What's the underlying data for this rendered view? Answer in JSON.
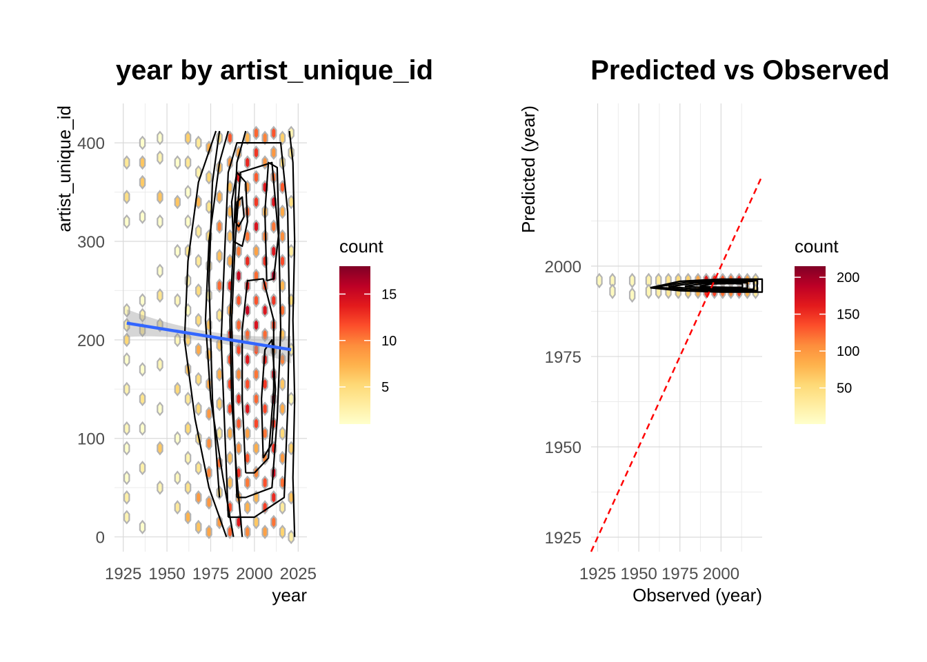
{
  "chart_data": [
    {
      "type": "hexbin",
      "title": "year by artist_unique_id",
      "xlabel": "year",
      "ylabel": "artist_unique_id",
      "xlim": [
        1920,
        2030
      ],
      "ylim": [
        -15,
        440
      ],
      "x_ticks": [
        1925,
        1950,
        1975,
        2000,
        2025
      ],
      "y_ticks": [
        0,
        100,
        200,
        300,
        400
      ],
      "x_tick_labels": [
        "1925",
        "1950",
        "1975",
        "2000",
        "2025"
      ],
      "y_tick_labels": [
        "0",
        "100",
        "200",
        "300",
        "400"
      ],
      "grid": true,
      "legend": {
        "title": "count",
        "position": "right",
        "labels": [
          "5",
          "10",
          "15"
        ],
        "breaks": [
          5,
          10,
          15
        ],
        "range": [
          1,
          18
        ]
      },
      "color_scale": [
        "#ffffcc",
        "#ffeda0",
        "#fed976",
        "#feb24c",
        "#fd8d3c",
        "#fc4e2a",
        "#e31a1c",
        "#bd0026",
        "#800026"
      ],
      "columns": [
        {
          "x": 1927,
          "intensity": 0.08,
          "ys": [
            20,
            40,
            60,
            90,
            110,
            150,
            180,
            200,
            215,
            230,
            320,
            345,
            380
          ]
        },
        {
          "x": 1936,
          "intensity": 0.1,
          "ys": [
            10,
            70,
            110,
            140,
            170,
            210,
            225,
            240,
            325,
            360,
            380,
            400
          ]
        },
        {
          "x": 1946,
          "intensity": 0.1,
          "ys": [
            50,
            90,
            130,
            175,
            215,
            245,
            270,
            320,
            345,
            385,
            405
          ]
        },
        {
          "x": 1956,
          "intensity": 0.12,
          "ys": [
            30,
            60,
            100,
            150,
            200,
            240,
            290,
            340,
            380
          ]
        },
        {
          "x": 1962,
          "intensity": 0.2,
          "ys": [
            20,
            50,
            80,
            110,
            140,
            170,
            200,
            230,
            260,
            290,
            320,
            350,
            380,
            405
          ]
        },
        {
          "x": 1968,
          "intensity": 0.25,
          "ys": [
            10,
            40,
            70,
            100,
            130,
            160,
            190,
            220,
            250,
            280,
            310,
            340,
            370,
            400
          ]
        },
        {
          "x": 1974,
          "intensity": 0.3,
          "ys": [
            5,
            35,
            65,
            95,
            125,
            155,
            185,
            215,
            245,
            275,
            305,
            335,
            365,
            395
          ]
        },
        {
          "x": 1980,
          "intensity": 0.35,
          "ys": [
            15,
            45,
            75,
            105,
            135,
            165,
            195,
            225,
            255,
            285,
            315,
            345,
            375,
            405
          ]
        },
        {
          "x": 1986,
          "intensity": 0.45,
          "ys": [
            5,
            30,
            55,
            80,
            105,
            130,
            155,
            180,
            205,
            230,
            255,
            280,
            305,
            330,
            355,
            380,
            405
          ]
        },
        {
          "x": 1991,
          "intensity": 0.6,
          "ys": [
            15,
            40,
            65,
            90,
            115,
            140,
            165,
            190,
            215,
            240,
            265,
            290,
            315,
            340,
            365,
            390
          ]
        },
        {
          "x": 1996,
          "intensity": 0.55,
          "ys": [
            5,
            30,
            55,
            80,
            105,
            130,
            155,
            180,
            205,
            230,
            255,
            280,
            305,
            330,
            355,
            380,
            405
          ]
        },
        {
          "x": 2001,
          "intensity": 0.5,
          "ys": [
            15,
            40,
            65,
            90,
            115,
            140,
            165,
            190,
            215,
            240,
            265,
            290,
            315,
            340,
            365,
            390,
            410
          ]
        },
        {
          "x": 2006,
          "intensity": 0.45,
          "ys": [
            5,
            30,
            55,
            80,
            105,
            130,
            155,
            180,
            205,
            230,
            255,
            280,
            305,
            330,
            355,
            380,
            405
          ]
        },
        {
          "x": 2011,
          "intensity": 0.6,
          "ys": [
            15,
            40,
            65,
            90,
            115,
            140,
            165,
            190,
            215,
            240,
            265,
            290,
            315,
            340,
            365,
            390,
            410
          ]
        },
        {
          "x": 2016,
          "intensity": 0.35,
          "ys": [
            5,
            30,
            55,
            80,
            105,
            130,
            155,
            180,
            205,
            230,
            255,
            280,
            305,
            330,
            355,
            380,
            405
          ]
        },
        {
          "x": 2021,
          "intensity": 0.15,
          "ys": [
            0,
            40,
            90,
            140,
            190,
            240,
            290,
            340,
            390,
            410
          ]
        }
      ],
      "regression": {
        "x": [
          1927,
          2021
        ],
        "y": [
          217,
          190
        ],
        "band_halfwidth_ends": 14,
        "band_halfwidth_mid": 5,
        "color": "#3366ff"
      },
      "density_contours": [
        [
          [
            1984,
            0
          ],
          [
            1974,
            50
          ],
          [
            1966,
            120
          ],
          [
            1960,
            200
          ],
          [
            1962,
            280
          ],
          [
            1968,
            360
          ],
          [
            1978,
            412
          ]
        ],
        [
          [
            1988,
            0
          ],
          [
            1982,
            60
          ],
          [
            1975,
            140
          ],
          [
            1972,
            220
          ],
          [
            1974,
            300
          ],
          [
            1980,
            380
          ],
          [
            1985,
            412
          ]
        ],
        [
          [
            1993,
            0
          ],
          [
            1990,
            60
          ],
          [
            1987,
            140
          ],
          [
            1986,
            220
          ],
          [
            1988,
            300
          ],
          [
            1990,
            380
          ],
          [
            1995,
            412
          ]
        ],
        [
          [
            2023,
            0
          ],
          [
            2022,
            60
          ],
          [
            2023,
            140
          ],
          [
            2022,
            220
          ],
          [
            2023,
            300
          ],
          [
            2022,
            380
          ],
          [
            2020,
            412
          ]
        ],
        [
          [
            1980,
            40
          ],
          [
            1976,
            140
          ],
          [
            1974,
            260
          ],
          [
            1976,
            360
          ],
          [
            1980,
            412
          ]
        ],
        [
          [
            1985,
            20
          ],
          [
            1983,
            110
          ],
          [
            1981,
            200
          ],
          [
            1983,
            290
          ],
          [
            1985,
            370
          ],
          [
            1990,
            400
          ],
          [
            2015,
            400
          ],
          [
            2019,
            330
          ],
          [
            2020,
            230
          ],
          [
            2019,
            130
          ],
          [
            2017,
            40
          ],
          [
            2000,
            20
          ],
          [
            1985,
            20
          ]
        ],
        [
          [
            1990,
            40
          ],
          [
            1988,
            130
          ],
          [
            1987,
            220
          ],
          [
            1989,
            300
          ],
          [
            1992,
            370
          ],
          [
            2010,
            380
          ],
          [
            2014,
            300
          ],
          [
            2015,
            210
          ],
          [
            2013,
            120
          ],
          [
            2010,
            50
          ],
          [
            1995,
            40
          ],
          [
            1990,
            40
          ]
        ],
        [
          [
            1995,
            65
          ],
          [
            1993,
            140
          ],
          [
            1993,
            210
          ],
          [
            1996,
            260
          ],
          [
            2005,
            262
          ],
          [
            2011,
            220
          ],
          [
            2011,
            150
          ],
          [
            2008,
            80
          ],
          [
            2000,
            65
          ],
          [
            1995,
            65
          ]
        ],
        [
          [
            2005,
            80
          ],
          [
            2004,
            140
          ],
          [
            2006,
            190
          ],
          [
            2010,
            200
          ],
          [
            2012,
            150
          ],
          [
            2010,
            95
          ],
          [
            2005,
            80
          ]
        ],
        [
          [
            1988,
            300
          ],
          [
            1987,
            340
          ],
          [
            1990,
            370
          ],
          [
            1995,
            360
          ],
          [
            1996,
            320
          ],
          [
            1993,
            295
          ],
          [
            1988,
            300
          ]
        ],
        [
          [
            1989,
            320
          ],
          [
            1990,
            340
          ],
          [
            1993,
            345
          ],
          [
            1994,
            325
          ],
          [
            1991,
            315
          ],
          [
            1989,
            320
          ]
        ],
        [
          [
            2007,
            260
          ],
          [
            2006,
            330
          ],
          [
            2008,
            380
          ],
          [
            2013,
            375
          ],
          [
            2014,
            310
          ],
          [
            2011,
            262
          ],
          [
            2007,
            260
          ]
        ]
      ]
    },
    {
      "type": "hexbin",
      "title": "Predicted vs Observed",
      "xlabel": "Observed (year)",
      "ylabel": "Predicted (year)",
      "xlim": [
        1921,
        2025
      ],
      "ylim": [
        1921,
        2045
      ],
      "x_ticks": [
        1925,
        1950,
        1975,
        2000
      ],
      "y_ticks": [
        1925,
        1950,
        1975,
        2000
      ],
      "x_tick_labels": [
        "1925",
        "1950",
        "1975",
        "2000"
      ],
      "y_tick_labels": [
        "1925",
        "1950",
        "1975",
        "2000"
      ],
      "grid": true,
      "legend": {
        "title": "count",
        "position": "right",
        "labels": [
          "50",
          "100",
          "150",
          "200"
        ],
        "breaks": [
          50,
          100,
          150,
          200
        ],
        "range": [
          1,
          215
        ]
      },
      "reference_line": {
        "slope": 1,
        "intercept": 0,
        "color": "#ff0000",
        "style": "dashed"
      },
      "points": [
        {
          "x": 1926,
          "y": 1996,
          "c": 10
        },
        {
          "x": 1934,
          "y": 1996,
          "c": 12
        },
        {
          "x": 1934,
          "y": 1993,
          "c": 8
        },
        {
          "x": 1946,
          "y": 1996,
          "c": 12
        },
        {
          "x": 1946,
          "y": 1992,
          "c": 8
        },
        {
          "x": 1956,
          "y": 1996,
          "c": 20
        },
        {
          "x": 1956,
          "y": 1993,
          "c": 15
        },
        {
          "x": 1962,
          "y": 1996,
          "c": 30
        },
        {
          "x": 1962,
          "y": 1993,
          "c": 25
        },
        {
          "x": 1968,
          "y": 1996,
          "c": 40
        },
        {
          "x": 1968,
          "y": 1993,
          "c": 35
        },
        {
          "x": 1974,
          "y": 1996,
          "c": 50
        },
        {
          "x": 1974,
          "y": 1993,
          "c": 45
        },
        {
          "x": 1980,
          "y": 1996,
          "c": 60
        },
        {
          "x": 1980,
          "y": 1993,
          "c": 55
        },
        {
          "x": 1986,
          "y": 1996,
          "c": 90
        },
        {
          "x": 1986,
          "y": 1993,
          "c": 80
        },
        {
          "x": 1991,
          "y": 1996,
          "c": 160
        },
        {
          "x": 1991,
          "y": 1993,
          "c": 150
        },
        {
          "x": 1996,
          "y": 1996,
          "c": 150
        },
        {
          "x": 1996,
          "y": 1993,
          "c": 140
        },
        {
          "x": 2001,
          "y": 1996,
          "c": 130
        },
        {
          "x": 2001,
          "y": 1993,
          "c": 120
        },
        {
          "x": 2006,
          "y": 1996,
          "c": 120
        },
        {
          "x": 2006,
          "y": 1993,
          "c": 110
        },
        {
          "x": 2011,
          "y": 1996,
          "c": 150
        },
        {
          "x": 2011,
          "y": 1993,
          "c": 140
        },
        {
          "x": 2016,
          "y": 1996,
          "c": 90
        },
        {
          "x": 2016,
          "y": 1993,
          "c": 80
        },
        {
          "x": 2021,
          "y": 1996,
          "c": 40
        },
        {
          "x": 2021,
          "y": 1993,
          "c": 30
        }
      ],
      "density_contours": [
        [
          [
            1957,
            1994
          ],
          [
            1975,
            1995.8
          ],
          [
            2000,
            1996.4
          ],
          [
            2025,
            1996.4
          ],
          [
            2025,
            1992.8
          ],
          [
            2000,
            1992.8
          ],
          [
            1975,
            1993.2
          ],
          [
            1957,
            1994
          ]
        ],
        [
          [
            1960,
            1994.2
          ],
          [
            1980,
            1995.6
          ],
          [
            2000,
            1996
          ],
          [
            2022,
            1996
          ],
          [
            2022,
            1993.2
          ],
          [
            2000,
            1993.2
          ],
          [
            1980,
            1993.4
          ],
          [
            1960,
            1994.2
          ]
        ],
        [
          [
            1968,
            1994.3
          ],
          [
            1985,
            1995.4
          ],
          [
            2000,
            1995.8
          ],
          [
            2020,
            1995.8
          ],
          [
            2020,
            1993.6
          ],
          [
            2000,
            1993.5
          ],
          [
            1985,
            1993.7
          ],
          [
            1968,
            1994.3
          ]
        ],
        [
          [
            1978,
            1994.4
          ],
          [
            1990,
            1995.2
          ],
          [
            2005,
            1995.5
          ],
          [
            2016,
            1995.4
          ],
          [
            2016,
            1993.9
          ],
          [
            2005,
            1993.8
          ],
          [
            1990,
            1994
          ],
          [
            1978,
            1994.4
          ]
        ],
        [
          [
            1987,
            1994.5
          ],
          [
            1995,
            1995.1
          ],
          [
            2007,
            1995.2
          ],
          [
            2013,
            1995.1
          ],
          [
            2013,
            1994.1
          ],
          [
            2007,
            1994.1
          ],
          [
            1995,
            1994.2
          ],
          [
            1987,
            1994.5
          ]
        ]
      ]
    }
  ]
}
